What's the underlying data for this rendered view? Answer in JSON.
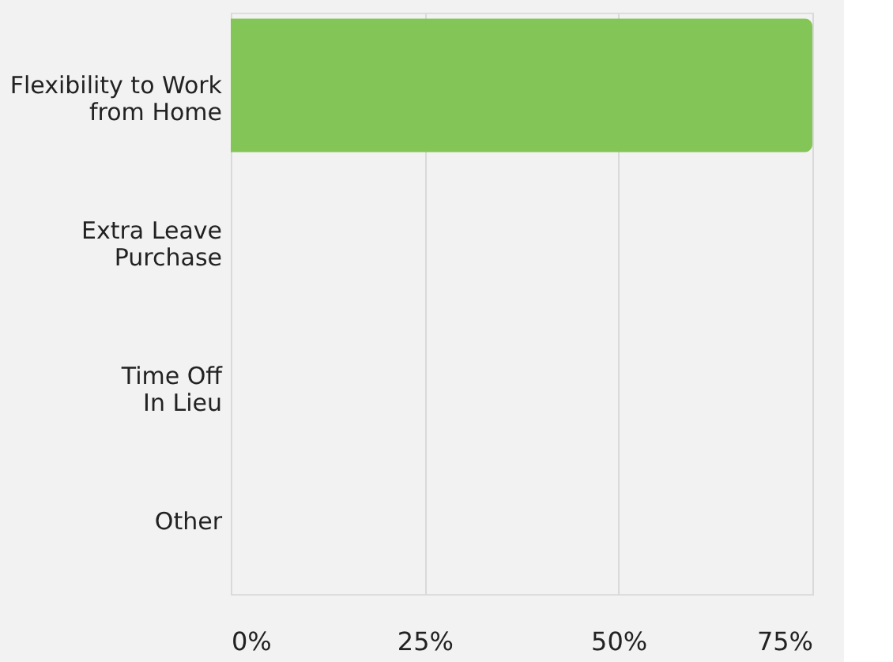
{
  "chart_data": {
    "type": "bar",
    "orientation": "horizontal",
    "categories": [
      "Flexibility to Work\nfrom Home",
      "Extra Leave\nPurchase",
      "Time Off\nIn Lieu",
      "Other"
    ],
    "values": [
      75,
      0,
      0,
      0
    ],
    "color": "#84c557",
    "xlim": [
      0,
      75
    ],
    "xticks": [
      {
        "value": 0,
        "label": "0%"
      },
      {
        "value": 25,
        "label": "25%"
      },
      {
        "value": 50,
        "label": "50%"
      },
      {
        "value": 75,
        "label": "75%"
      }
    ],
    "grid": "x"
  }
}
